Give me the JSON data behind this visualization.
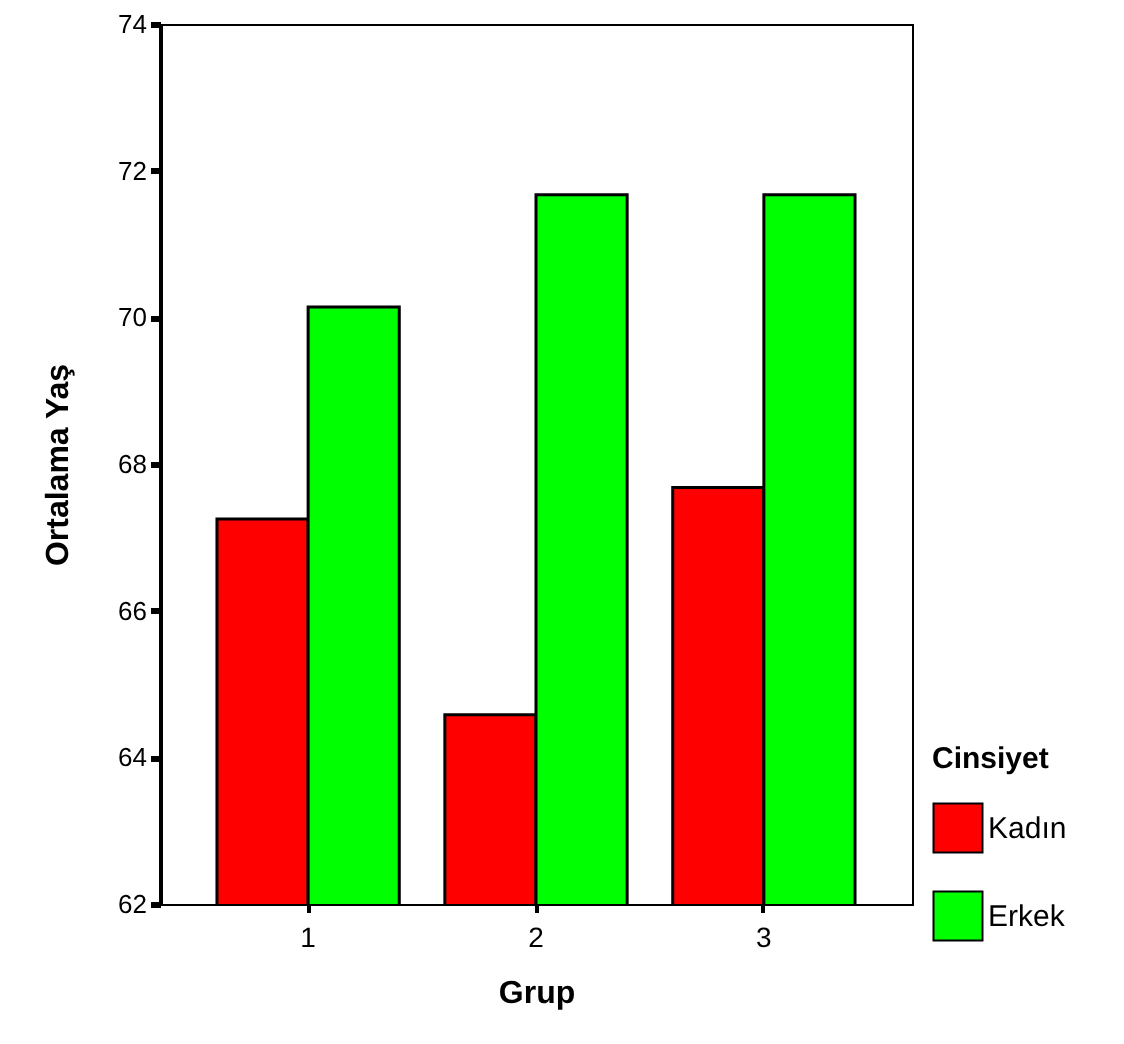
{
  "chart_data": {
    "type": "bar",
    "xlabel": "Grup",
    "ylabel": "Ortalama Yaş",
    "legend_title": "Cinsiyet",
    "categories": [
      "1",
      "2",
      "3"
    ],
    "series": [
      {
        "name": "Kadın",
        "color": "#ff0000",
        "values": [
          67.25,
          64.58,
          67.68
        ]
      },
      {
        "name": "Erkek",
        "color": "#00ff00",
        "values": [
          70.14,
          71.67,
          71.67
        ]
      }
    ],
    "ylim": [
      62,
      74
    ],
    "yticks": [
      62,
      64,
      66,
      68,
      70,
      72,
      74
    ],
    "grid": false,
    "legend": "bottom right"
  }
}
